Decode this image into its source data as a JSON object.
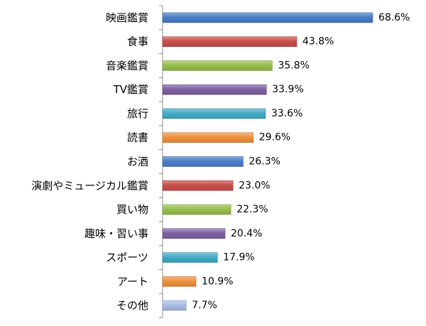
{
  "chart_data": {
    "type": "bar",
    "orientation": "horizontal",
    "categories": [
      "映画鑑賞",
      "食事",
      "音楽鑑賞",
      "TV鑑賞",
      "旅行",
      "読書",
      "お酒",
      "演劇やミュージカル鑑賞",
      "買い物",
      "趣味・習い事",
      "スポーツ",
      "アート",
      "その他"
    ],
    "values": [
      68.6,
      43.8,
      35.8,
      33.9,
      33.6,
      29.6,
      26.3,
      23.0,
      22.3,
      20.4,
      17.9,
      10.9,
      7.7
    ],
    "value_labels": [
      "68.6%",
      "43.8%",
      "35.8%",
      "33.9%",
      "33.6%",
      "29.6%",
      "26.3%",
      "23.0%",
      "22.3%",
      "20.4%",
      "17.9%",
      "10.9%",
      "7.7%"
    ],
    "colors": [
      "#4a7ec9",
      "#c9504c",
      "#98bf4e",
      "#7e62a3",
      "#44abc6",
      "#f0913f",
      "#4a7ec9",
      "#c9504c",
      "#98bf4e",
      "#7e62a3",
      "#44abc6",
      "#f0913f",
      "#a9bde6"
    ],
    "unit": "%",
    "xlim": [
      0,
      68.6
    ],
    "grid": false,
    "legend": "none"
  }
}
